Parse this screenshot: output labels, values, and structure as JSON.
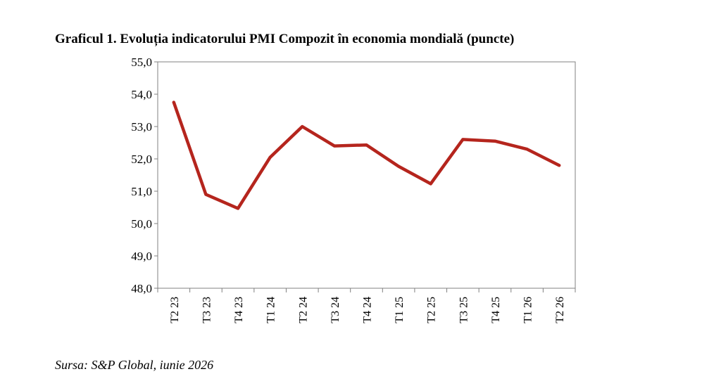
{
  "title": "Graficul 1. Evoluția indicatorului PMI Compozit în economia mondială (puncte)",
  "source": "Sursa: S&P Global, iunie 2026",
  "colors": {
    "line": "#b5251d",
    "axis": "#808080",
    "text": "#000000"
  },
  "chart_data": {
    "type": "line",
    "title": "Graficul 1. Evoluția indicatorului PMI Compozit în economia mondială (puncte)",
    "xlabel": "",
    "ylabel": "",
    "ylim": [
      48.0,
      55.0
    ],
    "y_ticks": [
      "48,0",
      "49,0",
      "50,0",
      "51,0",
      "52,0",
      "53,0",
      "54,0",
      "55,0"
    ],
    "categories": [
      "T2 23",
      "T3 23",
      "T4 23",
      "T1 24",
      "T2 24",
      "T3 24",
      "T4 24",
      "T1 25",
      "T2 25",
      "T3 25",
      "T4 25",
      "T1 26",
      "T2 26"
    ],
    "series": [
      {
        "name": "",
        "values": [
          53.75,
          50.9,
          50.47,
          52.05,
          53.0,
          52.4,
          52.43,
          51.77,
          51.23,
          52.6,
          52.55,
          52.3,
          51.8
        ]
      }
    ],
    "grid": false,
    "legend": "none"
  }
}
